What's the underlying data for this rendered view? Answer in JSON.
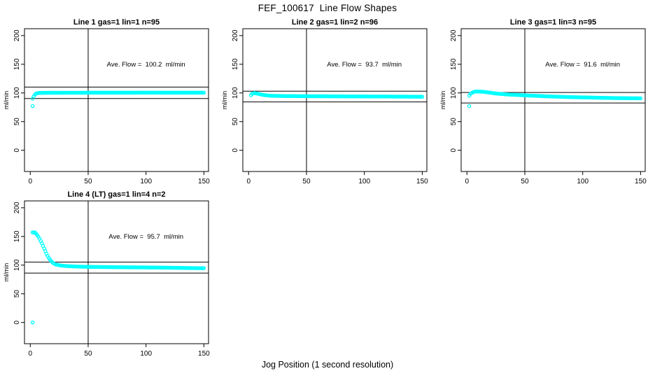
{
  "title": "FEF_100617  Line Flow Shapes",
  "xlabel": "Jog Position (1 second resolution)",
  "point_color": "#00FFFF",
  "axis_color": "#000000",
  "chart_data": [
    {
      "type": "scatter",
      "title": "Line 1 gas=1 lin=1 n=95",
      "annotation": "Ave. Flow =  100.2  ml/min",
      "avg_flow_ml_min": 100.2,
      "ylabel": "ml/min",
      "xticks": [
        0,
        50,
        100,
        150
      ],
      "yticks": [
        0,
        50,
        100,
        150,
        200
      ],
      "xlim": [
        -5,
        154
      ],
      "ylim": [
        -37,
        212
      ],
      "vline_x": 50,
      "ref_lines_y": [
        110.2,
        90.2
      ],
      "annotation_xy": [
        100,
        150
      ],
      "outliers": [
        [
          2,
          77
        ]
      ],
      "profile": [
        [
          2,
          90
        ],
        [
          3,
          94
        ],
        [
          4,
          97
        ],
        [
          5,
          99
        ],
        [
          7,
          100
        ],
        [
          10,
          100.2
        ],
        [
          20,
          100.3
        ],
        [
          50,
          100.4
        ],
        [
          100,
          100.5
        ],
        [
          150,
          100.4
        ]
      ]
    },
    {
      "type": "scatter",
      "title": "Line 2 gas=1 lin=2 n=96",
      "annotation": "Ave. Flow =  93.7  ml/min",
      "avg_flow_ml_min": 93.7,
      "ylabel": "ml/min",
      "xticks": [
        0,
        50,
        100,
        150
      ],
      "yticks": [
        0,
        50,
        100,
        150,
        200
      ],
      "xlim": [
        -5,
        154
      ],
      "ylim": [
        -37,
        212
      ],
      "vline_x": 50,
      "ref_lines_y": [
        103.1,
        84.3
      ],
      "annotation_xy": [
        100,
        150
      ],
      "outliers": [],
      "profile": [
        [
          2,
          96
        ],
        [
          3,
          98.5
        ],
        [
          5,
          99.8
        ],
        [
          7,
          99
        ],
        [
          9,
          98
        ],
        [
          12,
          96.8
        ],
        [
          15,
          95.8
        ],
        [
          20,
          95
        ],
        [
          30,
          94.6
        ],
        [
          50,
          94.3
        ],
        [
          80,
          94
        ],
        [
          120,
          93.7
        ],
        [
          150,
          93.4
        ]
      ]
    },
    {
      "type": "scatter",
      "title": "Line 3 gas=1 lin=3 n=95",
      "annotation": "Ave. Flow =  91.6  ml/min",
      "avg_flow_ml_min": 91.6,
      "ylabel": "ml/min",
      "xticks": [
        0,
        50,
        100,
        150
      ],
      "yticks": [
        0,
        50,
        100,
        150,
        200
      ],
      "xlim": [
        -5,
        154
      ],
      "ylim": [
        -37,
        212
      ],
      "vline_x": 50,
      "ref_lines_y": [
        100.8,
        82.4
      ],
      "annotation_xy": [
        100,
        150
      ],
      "outliers": [
        [
          2,
          77
        ]
      ],
      "profile": [
        [
          2,
          95
        ],
        [
          3,
          98.5
        ],
        [
          5,
          101
        ],
        [
          7,
          102.3
        ],
        [
          10,
          102.5
        ],
        [
          14,
          102
        ],
        [
          18,
          101
        ],
        [
          25,
          99
        ],
        [
          35,
          97.3
        ],
        [
          50,
          95.8
        ],
        [
          70,
          94
        ],
        [
          90,
          92.7
        ],
        [
          110,
          91.8
        ],
        [
          130,
          91
        ],
        [
          150,
          90.6
        ]
      ]
    },
    {
      "type": "scatter",
      "title": "Line 4 (LT) gas=1 lin=4 n=2",
      "annotation": "Ave. Flow =  95.7  ml/min",
      "avg_flow_ml_min": 95.7,
      "ylabel": "ml/min",
      "xticks": [
        0,
        50,
        100,
        150
      ],
      "yticks": [
        0,
        50,
        100,
        150,
        200
      ],
      "xlim": [
        -5,
        154
      ],
      "ylim": [
        -37,
        212
      ],
      "vline_x": 50,
      "ref_lines_y": [
        105.3,
        86.1
      ],
      "annotation_xy": [
        100,
        150
      ],
      "outliers": [
        [
          2,
          0
        ]
      ],
      "profile": [
        [
          2,
          157
        ],
        [
          4,
          157
        ],
        [
          5,
          155
        ],
        [
          6,
          152.5
        ],
        [
          7,
          149.5
        ],
        [
          8,
          146
        ],
        [
          9,
          142
        ],
        [
          10,
          138
        ],
        [
          11,
          133.5
        ],
        [
          12,
          129
        ],
        [
          13,
          124.5
        ],
        [
          14,
          120
        ],
        [
          15,
          116
        ],
        [
          16,
          112.5
        ],
        [
          17,
          109.5
        ],
        [
          18,
          107
        ],
        [
          19,
          105
        ],
        [
          20,
          103.2
        ],
        [
          22,
          101.3
        ],
        [
          25,
          99.8
        ],
        [
          28,
          99
        ],
        [
          32,
          98.3
        ],
        [
          40,
          97.5
        ],
        [
          50,
          97
        ],
        [
          65,
          96.6
        ],
        [
          80,
          96.3
        ],
        [
          100,
          96
        ],
        [
          120,
          95.5
        ],
        [
          135,
          95
        ],
        [
          150,
          94.6
        ]
      ]
    }
  ]
}
